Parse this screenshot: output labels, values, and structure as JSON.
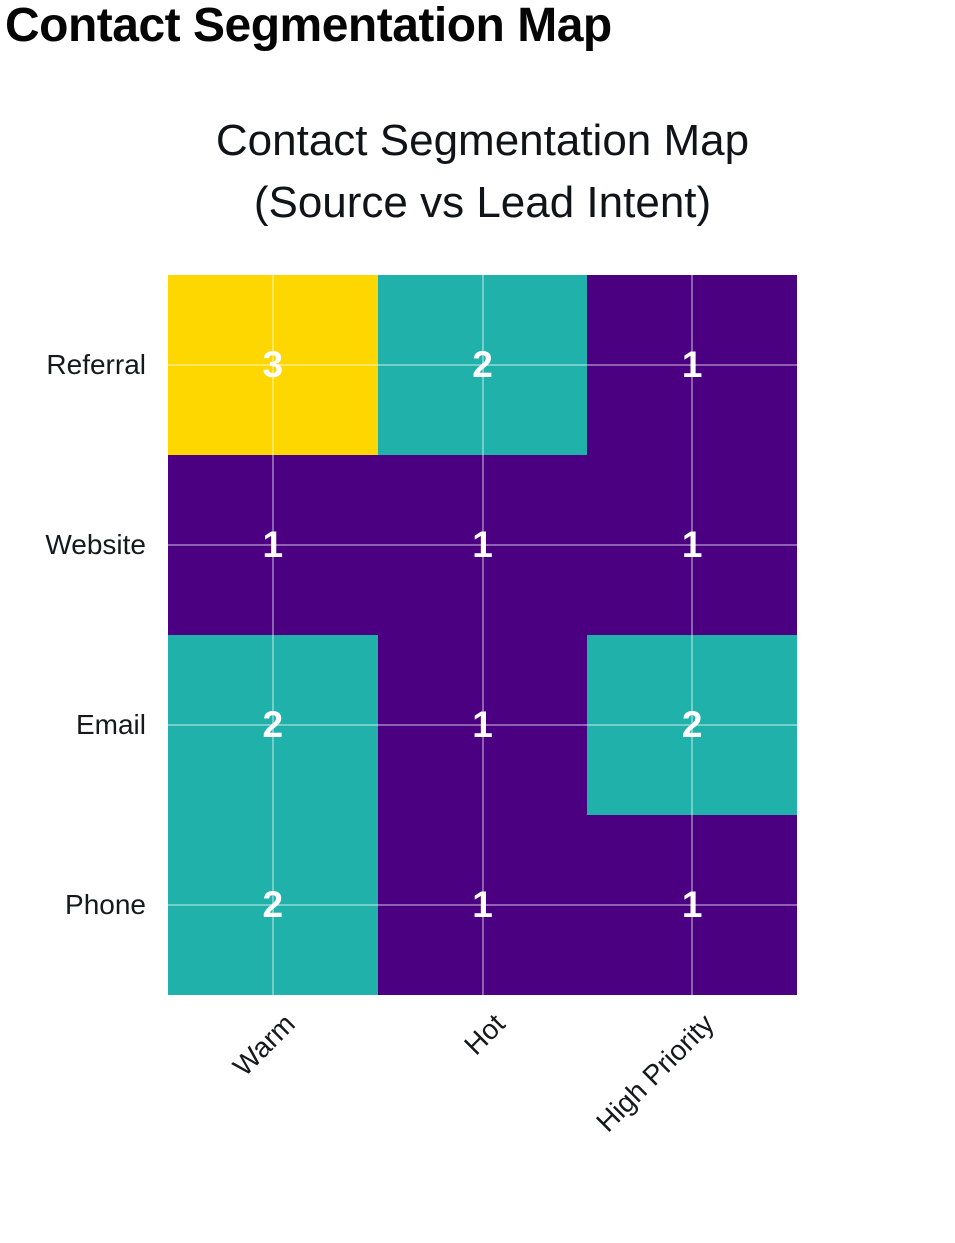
{
  "page": {
    "title": "Contact Segmentation Map"
  },
  "chart_data": {
    "type": "heatmap",
    "title": "Contact Segmentation Map (Source vs Lead Intent)",
    "title_lines": [
      "Contact Segmentation Map",
      "(Source vs Lead Intent)"
    ],
    "x_categories": [
      "Warm",
      "Hot",
      "High Priority"
    ],
    "y_categories": [
      "Referral",
      "Website",
      "Email",
      "Phone"
    ],
    "values": [
      [
        3,
        2,
        1
      ],
      [
        1,
        1,
        1
      ],
      [
        2,
        1,
        2
      ],
      [
        2,
        1,
        1
      ]
    ],
    "value_min": 1,
    "value_max": 3,
    "colorscale": {
      "1": "#4B0082",
      "2": "#20B2AA",
      "3": "#FFD700"
    },
    "cell_text_color": "#FFFFFF",
    "gridlines": true,
    "gridline_color": "rgba(255,255,255,0.38)",
    "x_tick_rotation_deg": -45,
    "legend": "none"
  }
}
